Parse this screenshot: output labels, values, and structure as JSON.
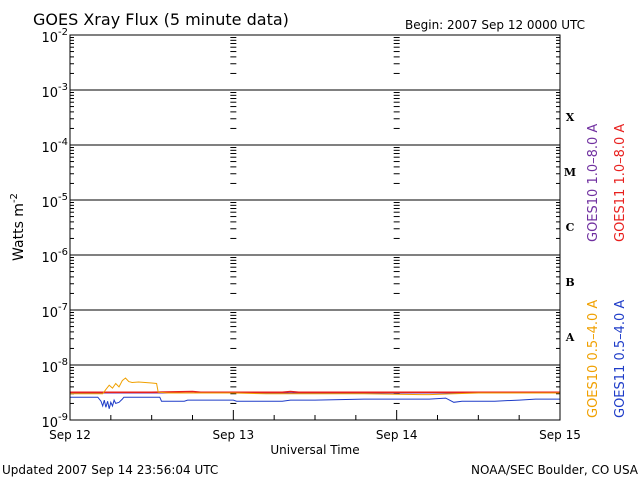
{
  "chart_data": {
    "type": "line",
    "title": "GOES Xray Flux (5 minute data)",
    "begin": "Begin:  2007 Sep 12 0000 UTC",
    "ylabel": "Watts m",
    "ylabel_sup": "-2",
    "xlabel": "Universal Time",
    "y_scale": "log",
    "ylim": [
      1e-09,
      0.01
    ],
    "y_ticks": [
      {
        "base": "10",
        "exp": "-2",
        "value": 0.01
      },
      {
        "base": "10",
        "exp": "-3",
        "value": 0.001
      },
      {
        "base": "10",
        "exp": "-4",
        "value": 0.0001
      },
      {
        "base": "10",
        "exp": "-5",
        "value": 1e-05
      },
      {
        "base": "10",
        "exp": "-6",
        "value": 1e-06
      },
      {
        "base": "10",
        "exp": "-7",
        "value": 1e-07
      },
      {
        "base": "10",
        "exp": "-8",
        "value": 1e-08
      },
      {
        "base": "10",
        "exp": "-9",
        "value": 1e-09
      }
    ],
    "flare_classes": [
      {
        "label": "X",
        "value": 0.00032
      },
      {
        "label": "M",
        "value": 3.2e-05
      },
      {
        "label": "C",
        "value": 3.2e-06
      },
      {
        "label": "B",
        "value": 3.2e-07
      },
      {
        "label": "A",
        "value": 3.2e-08
      }
    ],
    "xlim": [
      0,
      3
    ],
    "x_ticks": [
      {
        "label": "Sep 12",
        "value": 0
      },
      {
        "label": "Sep 13",
        "value": 1
      },
      {
        "label": "Sep 14",
        "value": 2
      },
      {
        "label": "Sep 15",
        "value": 3
      }
    ],
    "series": [
      {
        "name": "GOES10 1.0–8.0 A",
        "color": "#7030a0",
        "points": [
          [
            0,
            3.1e-09
          ],
          [
            3,
            3.1e-09
          ]
        ]
      },
      {
        "name": "GOES11 1.0–8.0 A",
        "color": "#e8201e",
        "points": [
          [
            0,
            3.2e-09
          ],
          [
            0.5,
            3.2e-09
          ],
          [
            0.75,
            3.3e-09
          ],
          [
            0.8,
            3.2e-09
          ],
          [
            1.3,
            3.2e-09
          ],
          [
            1.35,
            3.3e-09
          ],
          [
            1.4,
            3.2e-09
          ],
          [
            3,
            3.2e-09
          ]
        ]
      },
      {
        "name": "GOES10 0.5–4.0 A",
        "color": "#f0a000",
        "points": [
          [
            0,
            3e-09
          ],
          [
            0.1,
            3e-09
          ],
          [
            0.2,
            3e-09
          ],
          [
            0.22,
            3.6e-09
          ],
          [
            0.24,
            4.3e-09
          ],
          [
            0.26,
            3.8e-09
          ],
          [
            0.28,
            4.6e-09
          ],
          [
            0.3,
            4e-09
          ],
          [
            0.32,
            5.2e-09
          ],
          [
            0.34,
            5.8e-09
          ],
          [
            0.36,
            5e-09
          ],
          [
            0.38,
            4.8e-09
          ],
          [
            0.42,
            4.9e-09
          ],
          [
            0.46,
            4.8e-09
          ],
          [
            0.5,
            4.7e-09
          ],
          [
            0.53,
            4.6e-09
          ],
          [
            0.54,
            3.2e-09
          ],
          [
            0.6,
            3.1e-09
          ],
          [
            1.0,
            3.1e-09
          ],
          [
            1.2,
            3e-09
          ],
          [
            1.6,
            3e-09
          ],
          [
            1.8,
            3e-09
          ],
          [
            2.15,
            2.9e-09
          ],
          [
            2.2,
            2.9e-09
          ],
          [
            2.35,
            3e-09
          ],
          [
            2.5,
            3.1e-09
          ],
          [
            2.7,
            3.1e-09
          ],
          [
            3,
            3.1e-09
          ]
        ]
      },
      {
        "name": "GOES11 0.5–4.0 A",
        "color": "#1e3cc8",
        "points": [
          [
            0,
            2.6e-09
          ],
          [
            0.17,
            2.6e-09
          ],
          [
            0.19,
            2.2e-09
          ],
          [
            0.2,
            1.8e-09
          ],
          [
            0.21,
            2.3e-09
          ],
          [
            0.22,
            1.7e-09
          ],
          [
            0.23,
            2.2e-09
          ],
          [
            0.24,
            1.6e-09
          ],
          [
            0.25,
            2.1e-09
          ],
          [
            0.26,
            1.8e-09
          ],
          [
            0.27,
            2.3e-09
          ],
          [
            0.28,
            2e-09
          ],
          [
            0.3,
            2.1e-09
          ],
          [
            0.32,
            2.4e-09
          ],
          [
            0.33,
            2.6e-09
          ],
          [
            0.4,
            2.6e-09
          ],
          [
            0.55,
            2.6e-09
          ],
          [
            0.56,
            2.2e-09
          ],
          [
            0.6,
            2.2e-09
          ],
          [
            0.7,
            2.2e-09
          ],
          [
            0.72,
            2.3e-09
          ],
          [
            1.0,
            2.3e-09
          ],
          [
            1.02,
            2.2e-09
          ],
          [
            1.1,
            2.2e-09
          ],
          [
            1.2,
            2.2e-09
          ],
          [
            1.3,
            2.2e-09
          ],
          [
            1.35,
            2.3e-09
          ],
          [
            1.5,
            2.3e-09
          ],
          [
            1.8,
            2.4e-09
          ],
          [
            2.0,
            2.4e-09
          ],
          [
            2.2,
            2.4e-09
          ],
          [
            2.3,
            2.5e-09
          ],
          [
            2.35,
            2.1e-09
          ],
          [
            2.4,
            2.2e-09
          ],
          [
            2.6,
            2.2e-09
          ],
          [
            2.75,
            2.3e-09
          ],
          [
            2.85,
            2.4e-09
          ],
          [
            3,
            2.4e-09
          ]
        ]
      }
    ],
    "grid": "horizontal at each decade",
    "legend_placement": "right, vertical text"
  },
  "footer": {
    "updated": "Updated 2007 Sep 14 23:56:04 UTC",
    "source": "NOAA/SEC Boulder, CO USA"
  }
}
